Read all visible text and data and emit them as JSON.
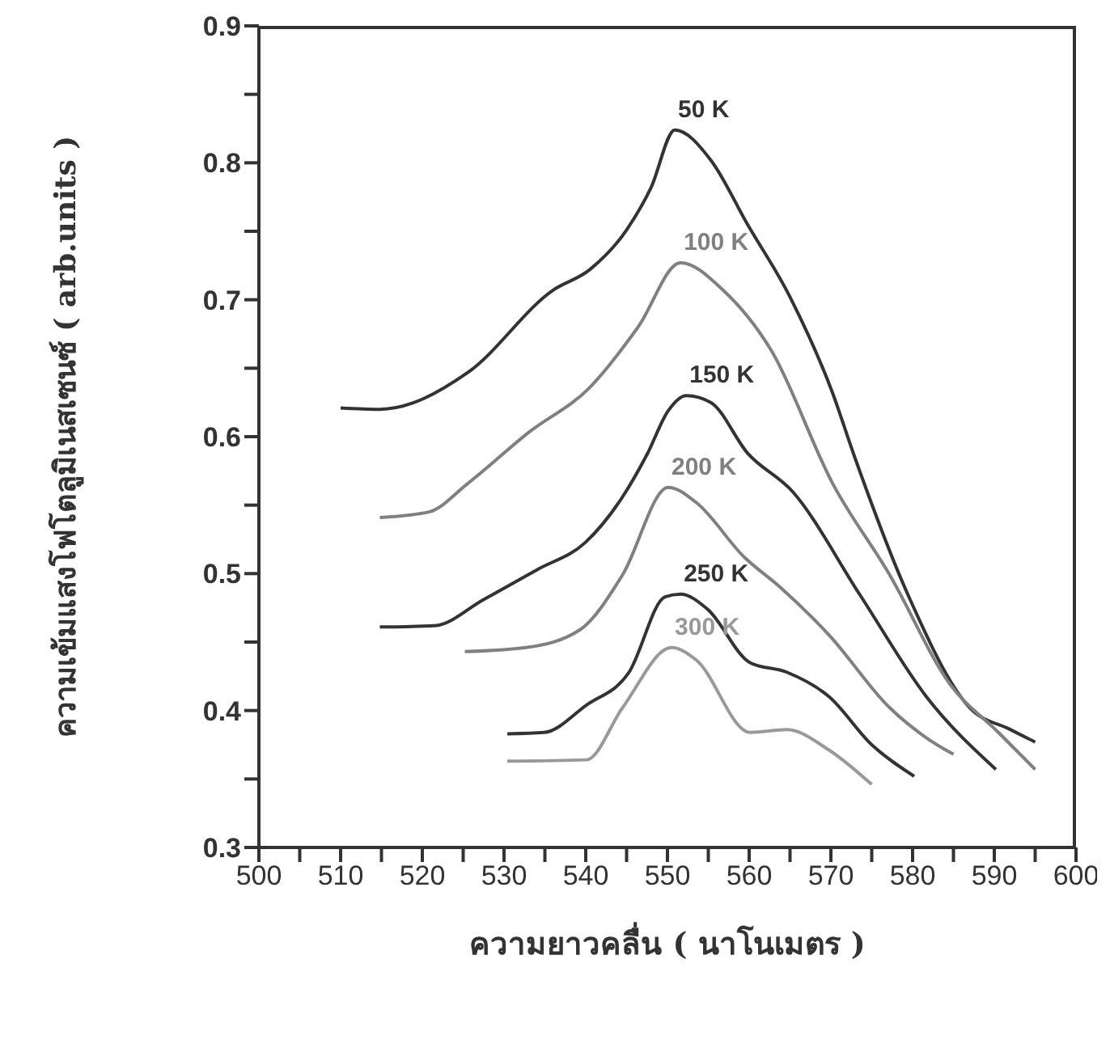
{
  "chart_data": {
    "type": "line",
    "xlabel": "ความยาวคลื่น ( นาโนเมตร )",
    "ylabel": "ความเข้มแสงโฟโตลูมิเนสเซนซ์ ( arb.units )",
    "xlim": [
      500,
      600
    ],
    "ylim": [
      0.3,
      0.9
    ],
    "xticks": [
      500,
      {
        "value": 505,
        "label": null
      },
      510,
      {
        "value": 515,
        "label": null
      },
      520,
      {
        "value": 525,
        "label": null
      },
      530,
      {
        "value": 535,
        "label": null
      },
      540,
      {
        "value": 545,
        "label": null
      },
      550,
      {
        "value": 555,
        "label": null
      },
      560,
      {
        "value": 565,
        "label": null
      },
      570,
      {
        "value": 575,
        "label": null
      },
      580,
      {
        "value": 585,
        "label": null
      },
      590,
      {
        "value": 595,
        "label": null
      },
      600
    ],
    "yticks": [
      0.3,
      {
        "value": 0.35,
        "label": null
      },
      0.4,
      {
        "value": 0.45,
        "label": null
      },
      0.5,
      {
        "value": 0.55,
        "label": null
      },
      0.6,
      {
        "value": 0.65,
        "label": null
      },
      0.7,
      {
        "value": 0.75,
        "label": null
      },
      0.8,
      {
        "value": 0.85,
        "label": null
      },
      0.9
    ],
    "grid": false,
    "legend": false,
    "marker": "none",
    "line_style": "solid",
    "series": [
      {
        "name": "50 K",
        "color": "#333333",
        "x": [
          510,
          514.8,
          525.6,
          536,
          540.5,
          545,
          548,
          550.9,
          555.3,
          559.8,
          565,
          570.2,
          572.8,
          579.4,
          587,
          592,
          595
        ],
        "values": [
          0.621,
          0.62,
          0.647,
          0.707,
          0.722,
          0.751,
          0.782,
          0.824,
          0.802,
          0.755,
          0.702,
          0.632,
          0.587,
          0.485,
          0.402,
          0.386,
          0.377
        ]
      },
      {
        "name": "100 K",
        "color": "#808080",
        "x": [
          514.8,
          520.8,
          525.6,
          533,
          540.5,
          546.4,
          551.6,
          556.8,
          562.7,
          570.2,
          577.2,
          584.6,
          590.5,
          595
        ],
        "values": [
          0.541,
          0.545,
          0.566,
          0.603,
          0.636,
          0.68,
          0.727,
          0.707,
          0.663,
          0.566,
          0.499,
          0.419,
          0.384,
          0.357
        ]
      },
      {
        "name": "150 K",
        "color": "#333333",
        "x": [
          514.8,
          521.5,
          527.5,
          534.1,
          540,
          544.5,
          547.5,
          550.1,
          552.3,
          555.3,
          559.8,
          565.3,
          573.5,
          581.7,
          590.2
        ],
        "values": [
          0.461,
          0.462,
          0.481,
          0.503,
          0.523,
          0.556,
          0.587,
          0.619,
          0.63,
          0.625,
          0.588,
          0.56,
          0.485,
          0.41,
          0.357
        ]
      },
      {
        "name": "200 K",
        "color": "#808080",
        "x": [
          525.2,
          532.7,
          539.3,
          544.5,
          550.1,
          553.5,
          559.4,
          563.8,
          569.8,
          577.2,
          581.7,
          585
        ],
        "values": [
          0.443,
          0.446,
          0.459,
          0.499,
          0.563,
          0.552,
          0.512,
          0.49,
          0.455,
          0.402,
          0.38,
          0.368
        ]
      },
      {
        "name": "250 K",
        "color": "#333333",
        "x": [
          530.4,
          534.9,
          540.1,
          545.3,
          549.7,
          551.6,
          554.9,
          560.1,
          564.6,
          569.8,
          575,
          580.2
        ],
        "values": [
          0.383,
          0.384,
          0.404,
          0.428,
          0.483,
          0.485,
          0.474,
          0.435,
          0.428,
          0.41,
          0.375,
          0.352
        ]
      },
      {
        "name": "300 K",
        "color": "#999999",
        "x": [
          530.4,
          540.1,
          544.5,
          550.5,
          553.5,
          560.1,
          564.6,
          569.8,
          575
        ],
        "values": [
          0.363,
          0.364,
          0.402,
          0.446,
          0.437,
          0.384,
          0.386,
          0.371,
          0.346
        ]
      }
    ]
  }
}
